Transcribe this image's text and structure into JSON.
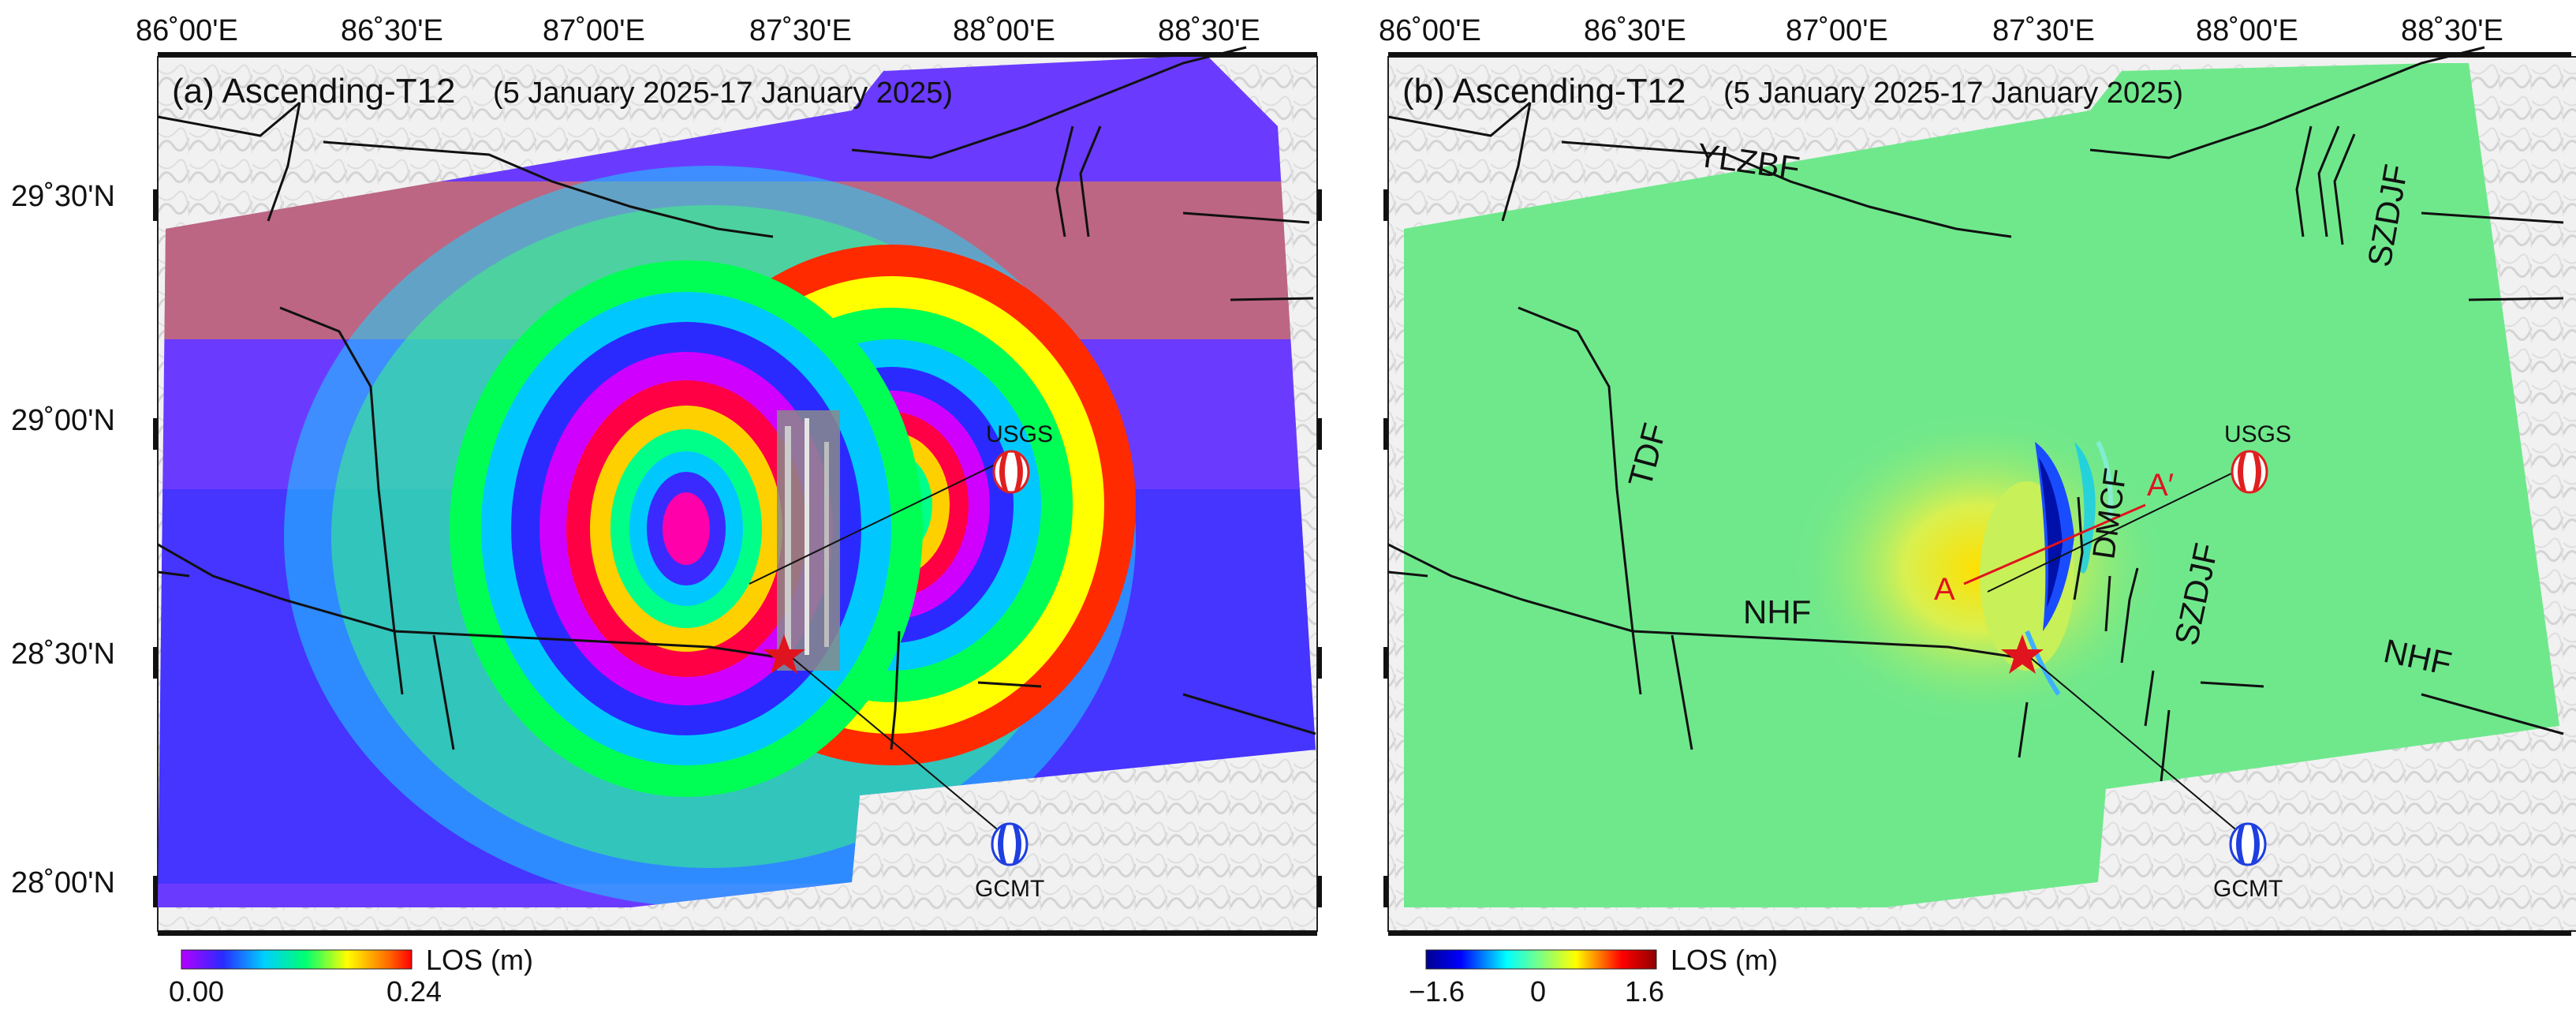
{
  "panels": [
    {
      "id": "a",
      "title_prefix": "(a) Ascending-T12",
      "title_dates": "(5 January 2025-17 January 2025)",
      "colorbar": {
        "label": "LOS (m)",
        "min_label": "0.00",
        "max_label": "0.24",
        "colormap": "wrapped-rainbow"
      },
      "mechanisms": [
        {
          "label": "USGS",
          "color": "#e02020"
        },
        {
          "label": "GCMT",
          "color": "#1f3fe0"
        }
      ],
      "fault_labels": []
    },
    {
      "id": "b",
      "title_prefix": "(b) Ascending-T12",
      "title_dates": "(5 January 2025-17 January 2025)",
      "colorbar": {
        "label": "LOS (m)",
        "min_label": "−1.6",
        "mid_label": "0",
        "max_label": "1.6",
        "colormap": "jet"
      },
      "mechanisms": [
        {
          "label": "USGS",
          "color": "#e02020"
        },
        {
          "label": "GCMT",
          "color": "#1f3fe0"
        }
      ],
      "fault_labels": [
        "YLZBF",
        "SZDJF",
        "TDF",
        "DMCF",
        "NHF",
        "SZDJF",
        "NHF"
      ],
      "profile": {
        "start": "A",
        "end": "A′"
      }
    }
  ],
  "lon_ticks": [
    "86˚00'E",
    "86˚30'E",
    "87˚00'E",
    "87˚30'E",
    "88˚00'E",
    "88˚30'E"
  ],
  "lat_ticks": [
    "29˚30'N",
    "29˚00'N",
    "28˚30'N",
    "28˚00'N"
  ],
  "colors": {
    "epicenter": "#e0141e",
    "fault": "#111111",
    "profile": "#e0141e"
  }
}
